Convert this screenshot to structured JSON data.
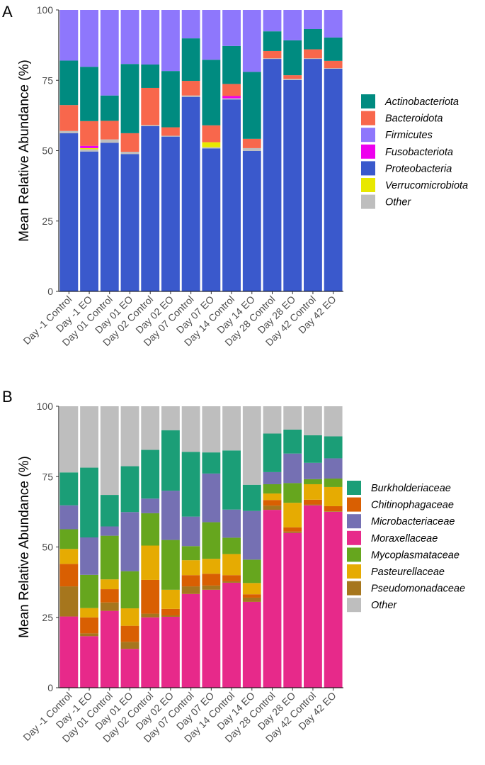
{
  "chart_data": [
    {
      "panel": "A",
      "type": "bar",
      "stacked": true,
      "ylabel": "Mean Relative Abundance (%)",
      "ylim": [
        0,
        100
      ],
      "yticks": [
        0,
        25,
        50,
        75,
        100
      ],
      "categories": [
        "Day -1 Control",
        "Day -1 EO",
        "Day 01 Control",
        "Day 01 EO",
        "Day 02 Control",
        "Day 02 EO",
        "Day 07 Control",
        "Day 07 EO",
        "Day 14 Control",
        "Day 14 EO",
        "Day 28 Control",
        "Day 28 EO",
        "Day 42 Control",
        "Day 42 EO"
      ],
      "stack_order": [
        "Proteobacteria",
        "Other",
        "Verrucomicrobiota",
        "Fusobacteriota",
        "Bacteroidota",
        "Actinobacteriota",
        "Firmicutes"
      ],
      "legend": [
        {
          "name": "Actinobacteriota",
          "color": "#008B80"
        },
        {
          "name": "Bacteroidota",
          "color": "#F8674C"
        },
        {
          "name": "Firmicutes",
          "color": "#8E77FC"
        },
        {
          "name": "Fusobacteriota",
          "color": "#EE00EE"
        },
        {
          "name": "Proteobacteria",
          "color": "#3A59CC"
        },
        {
          "name": "Verrucomicrobiota",
          "color": "#E8E800"
        },
        {
          "name": "Other",
          "color": "#BEBEBE"
        }
      ],
      "series": [
        {
          "name": "Proteobacteria",
          "values": [
            56.2,
            49.7,
            52.8,
            48.8,
            58.7,
            55.0,
            69.1,
            50.8,
            68.2,
            49.9,
            82.6,
            75.1,
            82.6,
            79.1
          ]
        },
        {
          "name": "Other",
          "values": [
            0.8,
            0.8,
            1.2,
            0.8,
            0.4,
            0.3,
            0.5,
            0.4,
            0.4,
            1.0,
            0.2,
            0.4,
            0.2,
            0.2
          ]
        },
        {
          "name": "Verrucomicrobiota",
          "values": [
            0.0,
            0.4,
            0.0,
            0.0,
            0.0,
            0.0,
            0.0,
            1.8,
            0.0,
            0.0,
            0.0,
            0.0,
            0.0,
            0.0
          ]
        },
        {
          "name": "Fusobacteriota",
          "values": [
            0.0,
            0.8,
            0.0,
            0.0,
            0.0,
            0.0,
            0.0,
            0.0,
            0.8,
            0.0,
            0.0,
            0.0,
            0.0,
            0.0
          ]
        },
        {
          "name": "Bacteroidota",
          "values": [
            9.2,
            8.8,
            6.6,
            6.6,
            13.2,
            3.0,
            5.2,
            6.0,
            4.3,
            3.3,
            2.6,
            1.3,
            3.2,
            2.6
          ]
        },
        {
          "name": "Actinobacteriota",
          "values": [
            15.8,
            19.3,
            9.0,
            24.6,
            8.3,
            20.0,
            15.1,
            23.3,
            13.5,
            23.8,
            7.0,
            12.4,
            7.2,
            8.3
          ]
        },
        {
          "name": "Firmicutes",
          "values": [
            18.0,
            20.2,
            30.4,
            19.2,
            19.4,
            21.7,
            10.1,
            17.7,
            12.8,
            22.0,
            7.6,
            10.8,
            6.8,
            9.8
          ]
        }
      ]
    },
    {
      "panel": "B",
      "type": "bar",
      "stacked": true,
      "ylabel": "Mean Relative Abundance (%)",
      "ylim": [
        0,
        100
      ],
      "yticks": [
        0,
        25,
        50,
        75,
        100
      ],
      "categories": [
        "Day -1 Control",
        "Day -1 EO",
        "Day 01 Control",
        "Day 01 EO",
        "Day 02 Control",
        "Day 02 EO",
        "Day 07 Control",
        "Day 07 EO",
        "Day 14 Control",
        "Day 14 EO",
        "Day 28 Control",
        "Day 28 EO",
        "Day 42 Control",
        "Day 42 EO"
      ],
      "stack_order": [
        "Moraxellaceae",
        "Pseudomonadaceae",
        "Chitinophagaceae",
        "Pasteurellaceae",
        "Mycoplasmataceae",
        "Microbacteriaceae",
        "Burkholderiaceae",
        "Other"
      ],
      "legend": [
        {
          "name": "Burkholderiaceae",
          "color": "#1B9E77"
        },
        {
          "name": "Chitinophagaceae",
          "color": "#D95F02"
        },
        {
          "name": "Microbacteriaceae",
          "color": "#7570B3"
        },
        {
          "name": "Moraxellaceae",
          "color": "#E7298A"
        },
        {
          "name": "Mycoplasmataceae",
          "color": "#66A61E"
        },
        {
          "name": "Pasteurellaceae",
          "color": "#E6AB02"
        },
        {
          "name": "Pseudomonadaceae",
          "color": "#A6761D"
        },
        {
          "name": "Other",
          "color": "#BEBEBE"
        }
      ],
      "series": [
        {
          "name": "Moraxellaceae",
          "values": [
            25.3,
            18.3,
            27.3,
            13.8,
            25.0,
            25.2,
            33.3,
            34.8,
            37.3,
            30.5,
            63.2,
            55.0,
            64.8,
            62.5
          ]
        },
        {
          "name": "Pseudomonadaceae",
          "values": [
            10.7,
            1.0,
            3.0,
            2.5,
            1.3,
            0.5,
            2.7,
            1.5,
            0.5,
            1.5,
            1.5,
            0.5,
            0.3,
            0.2
          ]
        },
        {
          "name": "Chitinophagaceae",
          "values": [
            8.0,
            5.7,
            4.7,
            5.7,
            12.0,
            2.3,
            4.0,
            4.2,
            2.2,
            1.2,
            2.0,
            1.5,
            1.7,
            1.8
          ]
        },
        {
          "name": "Pasteurellaceae",
          "values": [
            5.3,
            3.3,
            3.5,
            6.2,
            12.2,
            6.8,
            5.3,
            5.3,
            7.5,
            4.0,
            2.3,
            8.7,
            5.5,
            6.8
          ]
        },
        {
          "name": "Mycoplasmataceae",
          "values": [
            7.0,
            11.8,
            15.5,
            13.2,
            11.5,
            17.7,
            5.0,
            13.0,
            5.8,
            8.3,
            3.3,
            7.0,
            1.8,
            3.0
          ]
        },
        {
          "name": "Microbacteriaceae",
          "values": [
            8.5,
            13.3,
            3.3,
            21.0,
            5.2,
            17.5,
            10.5,
            17.3,
            10.0,
            17.3,
            4.3,
            10.5,
            5.8,
            7.2
          ]
        },
        {
          "name": "Burkholderiaceae",
          "values": [
            11.7,
            24.8,
            11.2,
            16.3,
            17.3,
            21.5,
            23.0,
            7.5,
            21.0,
            9.3,
            13.7,
            8.5,
            9.8,
            7.8
          ]
        },
        {
          "name": "Other",
          "values": [
            23.5,
            21.8,
            31.5,
            21.3,
            15.5,
            8.5,
            16.2,
            16.4,
            15.7,
            27.9,
            9.7,
            8.3,
            10.3,
            10.7
          ]
        }
      ]
    }
  ]
}
